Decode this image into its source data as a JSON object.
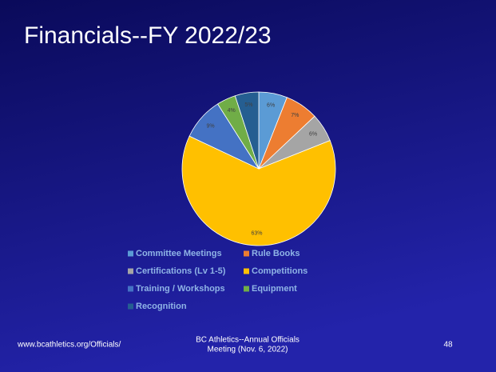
{
  "chart_data": {
    "type": "pie",
    "title": "Financials--FY 2022/23",
    "categories": [
      "Committee Meetings",
      "Rule Books",
      "Certifications (Lv 1-5)",
      "Competitions",
      "Training / Workshops",
      "Equipment",
      "Recognition"
    ],
    "values": [
      6,
      7,
      6,
      63,
      9,
      4,
      5
    ],
    "value_labels": [
      "6%",
      "7%",
      "6%",
      "63%",
      "9%",
      "4%",
      "5%"
    ],
    "colors": [
      "#5b9bd5",
      "#ed7d31",
      "#a5a5a5",
      "#ffc000",
      "#4472c4",
      "#70ad47",
      "#255e91"
    ],
    "legend": "bottom"
  },
  "footer": {
    "left": "www.bcathletics.org/Officials/",
    "center": [
      "BC Athletics--Annual Officials",
      "Meeting (Nov. 6, 2022)"
    ],
    "page_number": "48"
  }
}
